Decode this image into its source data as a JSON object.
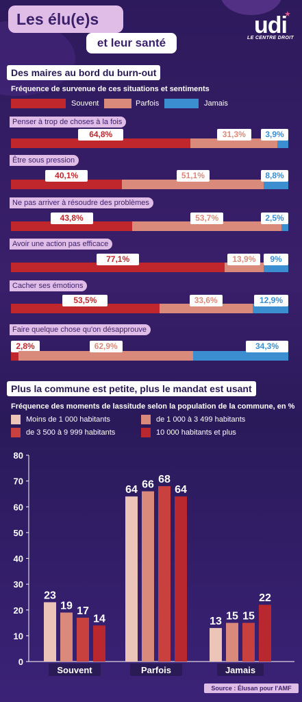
{
  "header": {
    "title_line1": "Les élu(e)s",
    "title_line2": "et leur santé",
    "logo_text": "udi",
    "logo_sub": "LE CENTRE DROIT"
  },
  "colors": {
    "souvent": "#c0272d",
    "parfois": "#d98a7a",
    "jamais": "#3b8fd1"
  },
  "section1": {
    "heading": "Des maires au bord du burn-out",
    "subtitle": "Fréquence de survenue de ces situations et sentiments",
    "legend": [
      "Souvent",
      "Parfois",
      "Jamais"
    ]
  },
  "section2": {
    "heading": "Plus la commune est petite, plus le mandat est usant",
    "subtitle": "Fréquence des moments de lassitude selon la population de la commune, en %",
    "legend": [
      "Moins de 1 000 habitants",
      "de 1 000 à 3 499 habitants",
      "de 3 500 à 9 999 habitants",
      "10 000 habitants et plus"
    ],
    "series_colors": [
      "#ecc4b8",
      "#d98a7a",
      "#c8413f",
      "#b8282e"
    ]
  },
  "source": "Source : Élusan pour l'AMF",
  "chart_data": [
    {
      "type": "bar",
      "orientation": "horizontal-stacked",
      "categories": [
        "Penser à trop de choses à la fois",
        "Être sous pression",
        "Ne pas arriver à résoudre des problèmes",
        "Avoir une action pas efficace",
        "Cacher ses émotions",
        "Faire quelque chose qu'on désapprouve"
      ],
      "series": [
        {
          "name": "Souvent",
          "values": [
            64.8,
            40.1,
            43.8,
            77.1,
            53.5,
            2.8
          ],
          "labels": [
            "64,8%",
            "40,1%",
            "43,8%",
            "77,1%",
            "53,5%",
            "2,8%"
          ]
        },
        {
          "name": "Parfois",
          "values": [
            31.3,
            51.1,
            53.7,
            13.9,
            33.6,
            62.9
          ],
          "labels": [
            "31,3%",
            "51,1%",
            "53,7%",
            "13,9%",
            "33,6%",
            "62,9%"
          ]
        },
        {
          "name": "Jamais",
          "values": [
            3.9,
            8.8,
            2.5,
            9,
            12.9,
            34.3
          ],
          "labels": [
            "3,9%",
            "8,8%",
            "2,5%",
            "9%",
            "12,9%",
            "34,3%"
          ]
        }
      ]
    },
    {
      "type": "bar",
      "categories": [
        "Souvent",
        "Parfois",
        "Jamais"
      ],
      "series": [
        {
          "name": "Moins de 1 000 habitants",
          "values": [
            23,
            64,
            13
          ]
        },
        {
          "name": "de 1 000 à 3 499 habitants",
          "values": [
            19,
            66,
            15
          ]
        },
        {
          "name": "de 3 500 à 9 999 habitants",
          "values": [
            17,
            68,
            15
          ]
        },
        {
          "name": "10 000 habitants et plus",
          "values": [
            14,
            64,
            22
          ]
        }
      ],
      "ylim": [
        0,
        80
      ],
      "yticks": [
        0,
        10,
        20,
        30,
        40,
        50,
        60,
        70,
        80
      ],
      "grid": false
    }
  ]
}
